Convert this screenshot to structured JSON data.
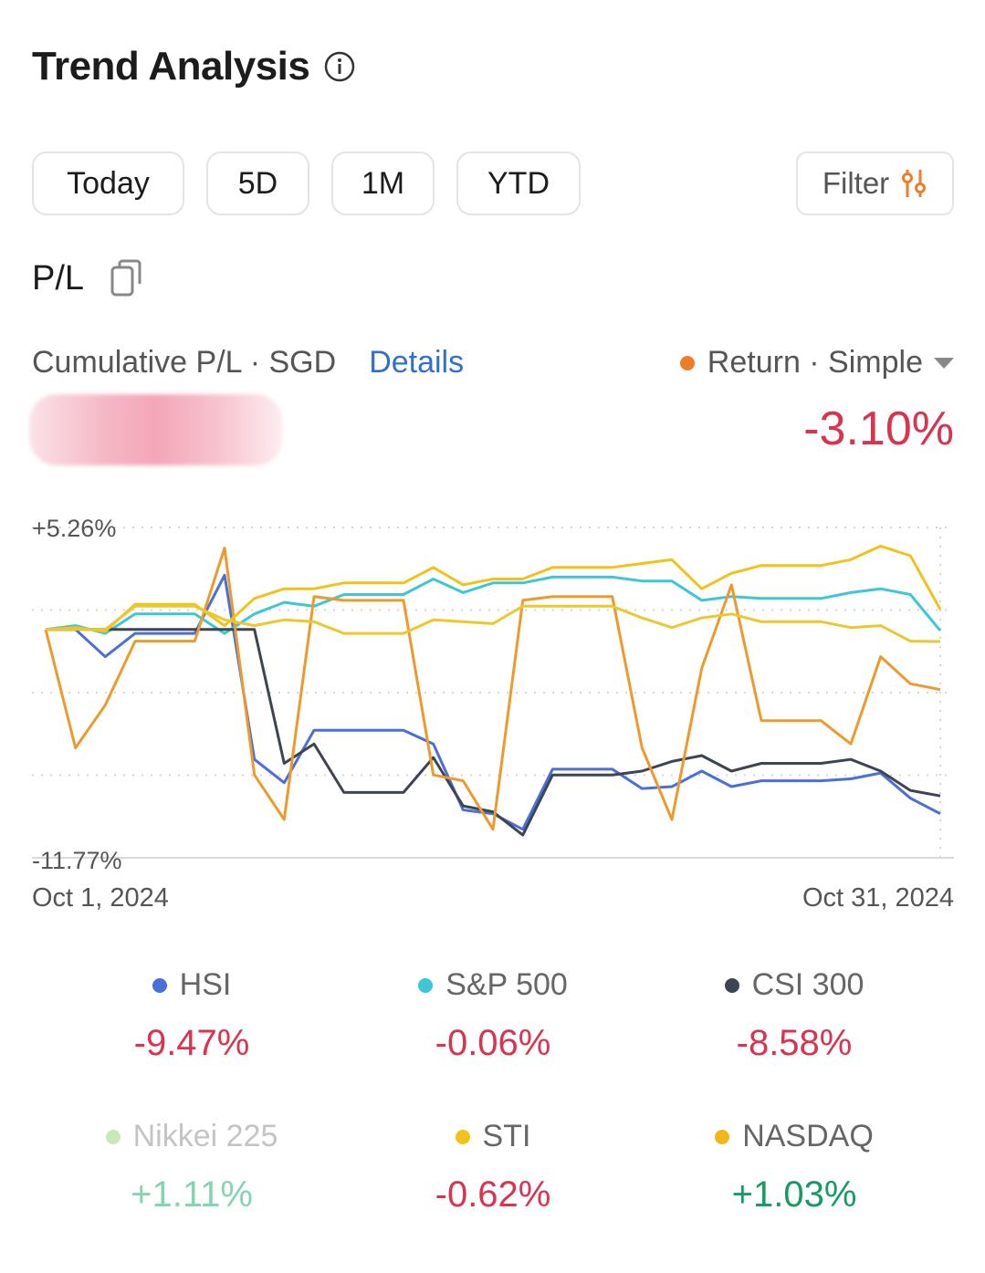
{
  "header": {
    "title": "Trend Analysis"
  },
  "periods": [
    {
      "label": "Today"
    },
    {
      "label": "5D"
    },
    {
      "label": "1M"
    },
    {
      "label": "YTD"
    }
  ],
  "filter": {
    "label": "Filter"
  },
  "pl": {
    "label": "P/L"
  },
  "cumulative": {
    "label": "Cumulative P/L · SGD",
    "details": "Details"
  },
  "return_selector": {
    "label": "Return · Simple",
    "dot_color": "#ee7d2a"
  },
  "return_value": "-3.10%",
  "chart_data": {
    "type": "line",
    "y_top_label": "+5.26%",
    "y_bottom_label": "-11.77%",
    "ylim": [
      -11.77,
      5.26
    ],
    "x_start_label": "Oct 1, 2024",
    "x_end_label": "Oct 31, 2024",
    "x": [
      1,
      2,
      3,
      4,
      5,
      6,
      7,
      8,
      9,
      10,
      11,
      12,
      13,
      14,
      15,
      16,
      17,
      18,
      19,
      20,
      21,
      22,
      23,
      24,
      25,
      26,
      27,
      28,
      29,
      30,
      31
    ],
    "series": [
      {
        "color": "#4a6fd8",
        "values": [
          0,
          0,
          -1.4,
          -0.2,
          -0.2,
          -0.2,
          2.8,
          -6.7,
          -7.9,
          -5.2,
          -5.2,
          -5.2,
          -5.2,
          -5.9,
          -9.3,
          -9.5,
          -10.3,
          -7.2,
          -7.2,
          -7.2,
          -8.2,
          -8.1,
          -7.3,
          -8.1,
          -7.8,
          -7.8,
          -7.8,
          -7.7,
          -7.4,
          -8.7,
          -9.5
        ]
      },
      {
        "color": "#3dc7d6",
        "values": [
          0,
          0.2,
          -0.2,
          0.8,
          0.8,
          0.8,
          -0.2,
          0.8,
          1.4,
          1.2,
          1.8,
          1.8,
          1.8,
          2.6,
          1.9,
          2.4,
          2.4,
          2.7,
          2.7,
          2.7,
          2.5,
          2.5,
          1.5,
          1.7,
          1.6,
          1.6,
          1.6,
          1.9,
          2.1,
          1.8,
          -0.06
        ]
      },
      {
        "color": "#3d4552",
        "values": [
          0,
          0,
          0,
          0,
          0,
          0,
          0,
          0,
          -6.9,
          -5.9,
          -8.4,
          -8.4,
          -8.4,
          -6.6,
          -9.1,
          -9.4,
          -10.6,
          -7.5,
          -7.5,
          -7.5,
          -7.3,
          -6.8,
          -6.5,
          -7.3,
          -6.9,
          -6.9,
          -6.9,
          -6.7,
          -7.3,
          -8.3,
          -8.58
        ]
      },
      {
        "color": "#ee9a2a",
        "values": [
          0,
          -6.1,
          -3.9,
          -0.6,
          -0.6,
          -0.6,
          4.2,
          -7.5,
          -9.8,
          1.7,
          1.5,
          1.5,
          1.5,
          -7.5,
          -7.8,
          -10.3,
          1.5,
          1.7,
          1.7,
          1.7,
          -6.1,
          -9.8,
          -2.0,
          2.3,
          -4.7,
          -4.7,
          -4.7,
          -5.9,
          -1.4,
          -2.8,
          -3.1
        ]
      },
      {
        "color": "#f2c21a",
        "values": [
          0,
          0.1,
          -0.1,
          1.3,
          1.3,
          1.3,
          0.2,
          1.6,
          2.1,
          2.1,
          2.4,
          2.4,
          2.4,
          3.2,
          2.3,
          2.6,
          2.6,
          3.2,
          3.2,
          3.2,
          3.4,
          3.6,
          2.1,
          2.9,
          3.3,
          3.3,
          3.3,
          3.6,
          4.3,
          3.8,
          1.03
        ]
      },
      {
        "color": "#ecc72e",
        "values": [
          0,
          0,
          0,
          1.2,
          1.2,
          1.2,
          0.5,
          0.2,
          0.5,
          0.4,
          -0.2,
          -0.2,
          -0.2,
          0.5,
          0.4,
          0.3,
          1.2,
          1.2,
          1.2,
          1.2,
          0.6,
          0.1,
          0.6,
          0.8,
          0.4,
          0.4,
          0.4,
          0.1,
          0.2,
          -0.6,
          -0.62
        ]
      }
    ]
  },
  "legend": [
    {
      "name": "HSI",
      "value": "-9.47%",
      "dot": "#4a6fd8",
      "val_color": "#d8334f",
      "name_color": "#666666"
    },
    {
      "name": "S&P 500",
      "value": "-0.06%",
      "dot": "#3dc7d6",
      "val_color": "#d8334f",
      "name_color": "#666666"
    },
    {
      "name": "CSI 300",
      "value": "-8.58%",
      "dot": "#3d4552",
      "val_color": "#d8334f",
      "name_color": "#666666"
    },
    {
      "name": "Nikkei 225",
      "value": "+1.11%",
      "dot": "#cde8b8",
      "val_color": "#86d3b0",
      "name_color": "#c4c4c4"
    },
    {
      "name": "STI",
      "value": "-0.62%",
      "dot": "#f2c21a",
      "val_color": "#d8334f",
      "name_color": "#666666"
    },
    {
      "name": "NASDAQ",
      "value": "+1.03%",
      "dot": "#f2b51a",
      "val_color": "#169b62",
      "name_color": "#666666"
    }
  ]
}
